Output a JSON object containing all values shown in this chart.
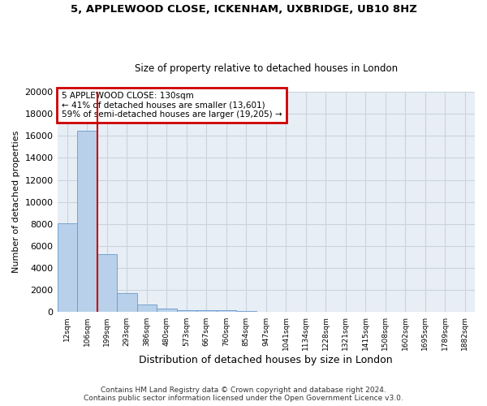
{
  "title_line1": "5, APPLEWOOD CLOSE, ICKENHAM, UXBRIDGE, UB10 8HZ",
  "title_line2": "Size of property relative to detached houses in London",
  "xlabel": "Distribution of detached houses by size in London",
  "ylabel": "Number of detached properties",
  "bar_values": [
    8050,
    16500,
    5300,
    1750,
    680,
    320,
    200,
    175,
    150,
    130,
    0,
    0,
    0,
    0,
    0,
    0,
    0,
    0,
    0,
    0,
    0
  ],
  "bar_labels": [
    "12sqm",
    "106sqm",
    "199sqm",
    "293sqm",
    "386sqm",
    "480sqm",
    "573sqm",
    "667sqm",
    "760sqm",
    "854sqm",
    "947sqm",
    "1041sqm",
    "1134sqm",
    "1228sqm",
    "1321sqm",
    "1415sqm",
    "1508sqm",
    "1602sqm",
    "1695sqm",
    "1789sqm",
    "1882sqm"
  ],
  "bar_color": "#b8d0ea",
  "bar_edgecolor": "#6699cc",
  "vline_color": "#cc0000",
  "annotation_line1": "5 APPLEWOOD CLOSE: 130sqm",
  "annotation_line2": "← 41% of detached houses are smaller (13,601)",
  "annotation_line3": "59% of semi-detached houses are larger (19,205) →",
  "annotation_box_color": "#cc0000",
  "annotation_bg": "#ffffff",
  "ylim_max": 20000,
  "yticks": [
    0,
    2000,
    4000,
    6000,
    8000,
    10000,
    12000,
    14000,
    16000,
    18000,
    20000
  ],
  "grid_color": "#c8d4e0",
  "bg_color": "#e8eef5",
  "footer_line1": "Contains HM Land Registry data © Crown copyright and database right 2024.",
  "footer_line2": "Contains public sector information licensed under the Open Government Licence v3.0.",
  "n_bars": 21
}
